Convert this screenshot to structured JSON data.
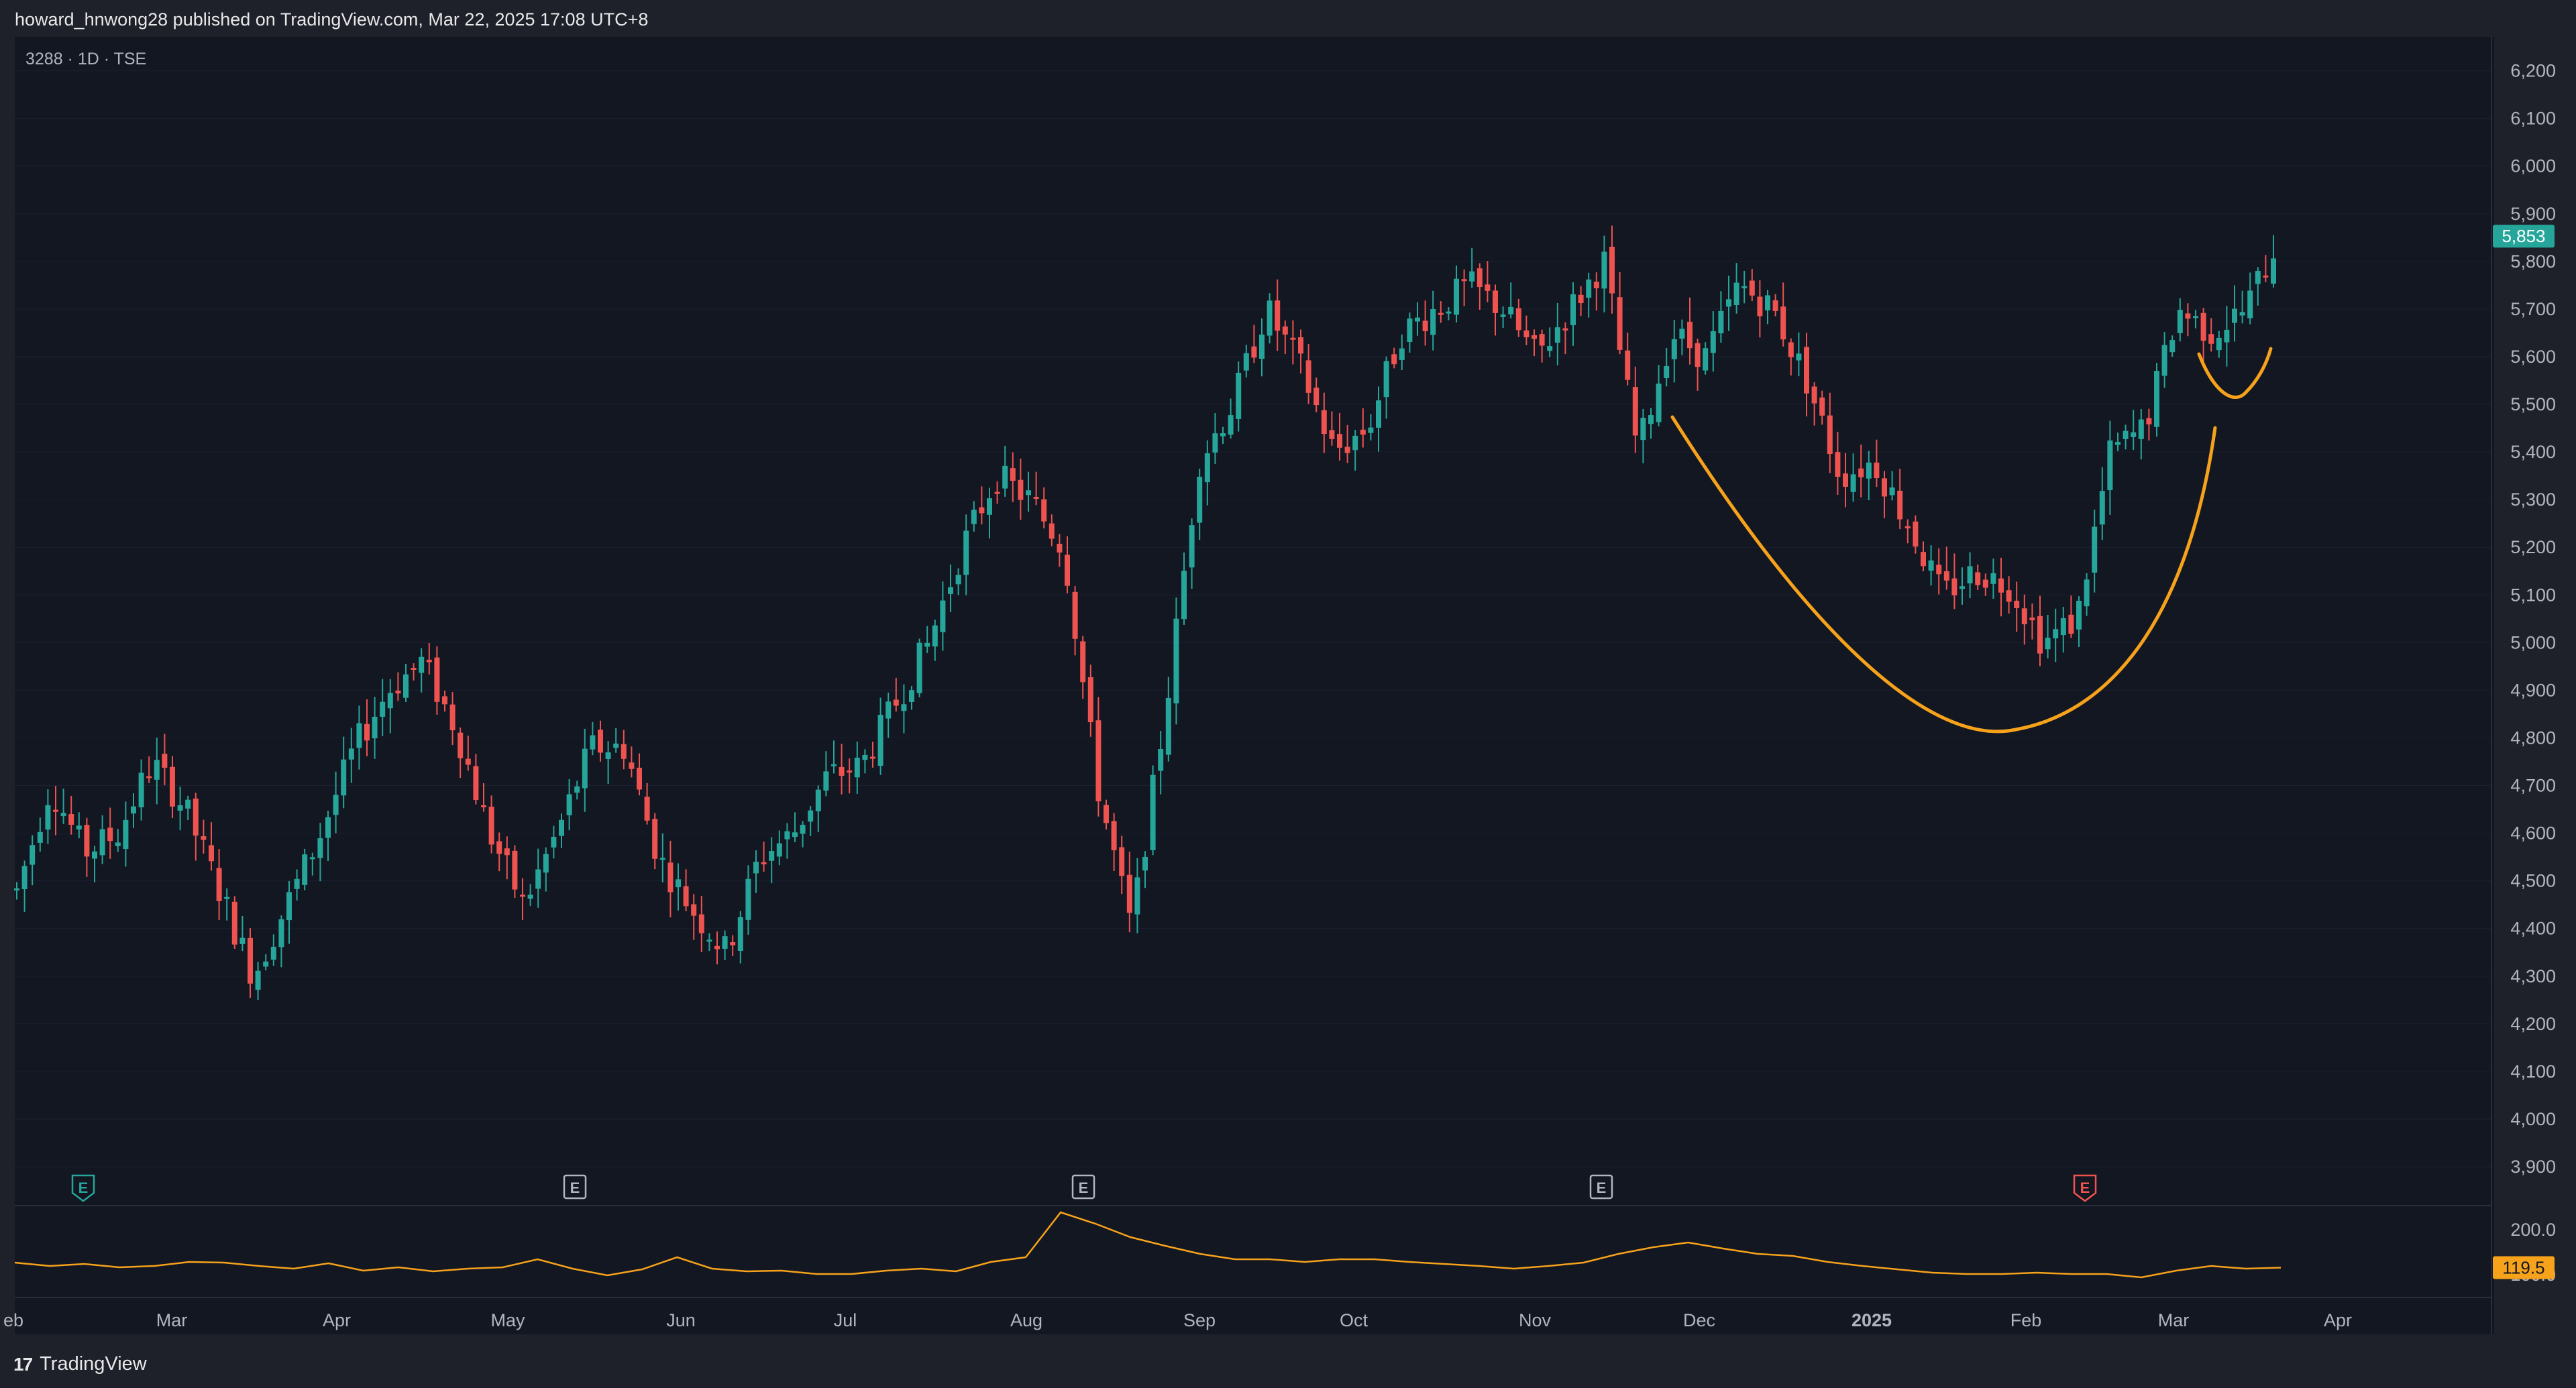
{
  "header": {
    "published_by": "howard_hnwong28 published on TradingView.com, Mar 22, 2025 17:08 UTC+8"
  },
  "symbol": {
    "label": "3288 · 1D · TSE"
  },
  "footer": {
    "brand_mark": "17",
    "brand_name": "TradingView"
  },
  "colors": {
    "up": "#26a69a",
    "down": "#ef5350",
    "annotation": "#f7a21b",
    "volume_line": "#f7a21b",
    "background": "#131722"
  },
  "chart_data": [
    {
      "type": "candlestick",
      "title": "3288 · 1D · TSE",
      "price_axis": {
        "ticks": [
          3900,
          4000,
          4100,
          4200,
          4300,
          4400,
          4500,
          4600,
          4700,
          4800,
          4900,
          5000,
          5100,
          5200,
          5300,
          5400,
          5500,
          5600,
          5700,
          5800,
          5900,
          6000,
          6100,
          6200
        ],
        "tick_labels": [
          "3,900",
          "4,000",
          "4,100",
          "4,200",
          "4,300",
          "4,400",
          "4,500",
          "4,600",
          "4,700",
          "4,800",
          "4,900",
          "5,000",
          "5,100",
          "5,200",
          "5,300",
          "5,400",
          "5,500",
          "5,600",
          "5,700",
          "5,800",
          "5,900",
          "6,000",
          "6,100",
          "6,200"
        ],
        "last_price": 5853,
        "last_price_label": "5,853"
      },
      "time_axis": {
        "labels": [
          "eb",
          "Mar",
          "Apr",
          "May",
          "Jun",
          "Jul",
          "Aug",
          "Sep",
          "Oct",
          "Nov",
          "Dec",
          "2025",
          "Feb",
          "Mar",
          "Apr"
        ]
      },
      "anchors": [
        [
          "Feb",
          4480
        ],
        [
          "Feb",
          4700
        ],
        [
          "Feb",
          4560
        ],
        [
          "Feb",
          4600
        ],
        [
          "Feb",
          4750
        ],
        [
          "Feb",
          4650
        ],
        [
          "Mar",
          4480
        ],
        [
          "Mar",
          4300
        ],
        [
          "Mar",
          4450
        ],
        [
          "Apr",
          4600
        ],
        [
          "Apr",
          4780
        ],
        [
          "Apr",
          4900
        ],
        [
          "Apr",
          4960
        ],
        [
          "Apr",
          4820
        ],
        [
          "May",
          4600
        ],
        [
          "May",
          4450
        ],
        [
          "May",
          4600
        ],
        [
          "May",
          4780
        ],
        [
          "May",
          4780
        ],
        [
          "May",
          4550
        ],
        [
          "Jun",
          4440
        ],
        [
          "Jun",
          4350
        ],
        [
          "Jun",
          4550
        ],
        [
          "Jun",
          4600
        ],
        [
          "Jun",
          4720
        ],
        [
          "Jul",
          4740
        ],
        [
          "Jul",
          4870
        ],
        [
          "Jul",
          5000
        ],
        [
          "Jul",
          5200
        ],
        [
          "Jul",
          5350
        ],
        [
          "Aug",
          5300
        ],
        [
          "Aug",
          5200
        ],
        [
          "Aug",
          4700
        ],
        [
          "Aug",
          4400
        ],
        [
          "Aug",
          4850
        ],
        [
          "Aug",
          5380
        ],
        [
          "Sep",
          5500
        ],
        [
          "Sep",
          5700
        ],
        [
          "Sep",
          5580
        ],
        [
          "Sep",
          5400
        ],
        [
          "Sep",
          5450
        ],
        [
          "Oct",
          5650
        ],
        [
          "Oct",
          5700
        ],
        [
          "Oct",
          5750
        ],
        [
          "Nov",
          5700
        ],
        [
          "Nov",
          5600
        ],
        [
          "Nov",
          5700
        ],
        [
          "Nov",
          5800
        ],
        [
          "Nov",
          5400
        ],
        [
          "Nov",
          5650
        ],
        [
          "Dec",
          5600
        ],
        [
          "Dec",
          5750
        ],
        [
          "Dec",
          5700
        ],
        [
          "Dec",
          5550
        ],
        [
          "Dec",
          5350
        ],
        [
          "Dec",
          5380
        ],
        [
          "2025",
          5250
        ],
        [
          "2025",
          5100
        ],
        [
          "2025",
          5150
        ],
        [
          "Feb",
          5120
        ],
        [
          "Feb",
          5000
        ],
        [
          "Feb",
          5050
        ],
        [
          "Feb",
          5400
        ],
        [
          "Mar",
          5450
        ],
        [
          "Mar",
          5700
        ],
        [
          "Mar",
          5650
        ],
        [
          "Mar",
          5700
        ],
        [
          "Apr",
          5853
        ]
      ],
      "events": [
        {
          "label": "E",
          "month": "Feb",
          "color": "#26a69a"
        },
        {
          "label": "E",
          "month": "May",
          "color": "#b2b5be"
        },
        {
          "label": "E",
          "month": "Aug",
          "color": "#b2b5be"
        },
        {
          "label": "E",
          "month": "Nov",
          "color": "#b2b5be"
        },
        {
          "label": "E",
          "month": "Feb",
          "color": "#ef5350"
        }
      ]
    },
    {
      "type": "line",
      "series": [
        {
          "values": [
            125,
            122,
            125,
            118,
            122,
            128,
            125,
            122,
            118,
            124,
            115,
            120,
            112,
            118,
            120,
            130,
            118,
            108,
            115,
            135,
            118,
            112,
            115,
            110,
            108,
            115,
            118,
            112,
            128,
            135,
            200,
            185,
            165,
            150,
            140,
            132,
            130,
            128,
            132,
            130,
            128,
            125,
            120,
            118,
            122,
            125,
            140,
            150,
            155,
            148,
            140,
            135,
            128,
            122,
            115,
            112,
            110,
            108,
            112,
            110,
            108,
            105,
            115,
            120,
            118,
            119.5
          ]
        }
      ],
      "last_value_label": "119.5",
      "axis_labels": [
        "200.0",
        "100.0"
      ]
    }
  ]
}
